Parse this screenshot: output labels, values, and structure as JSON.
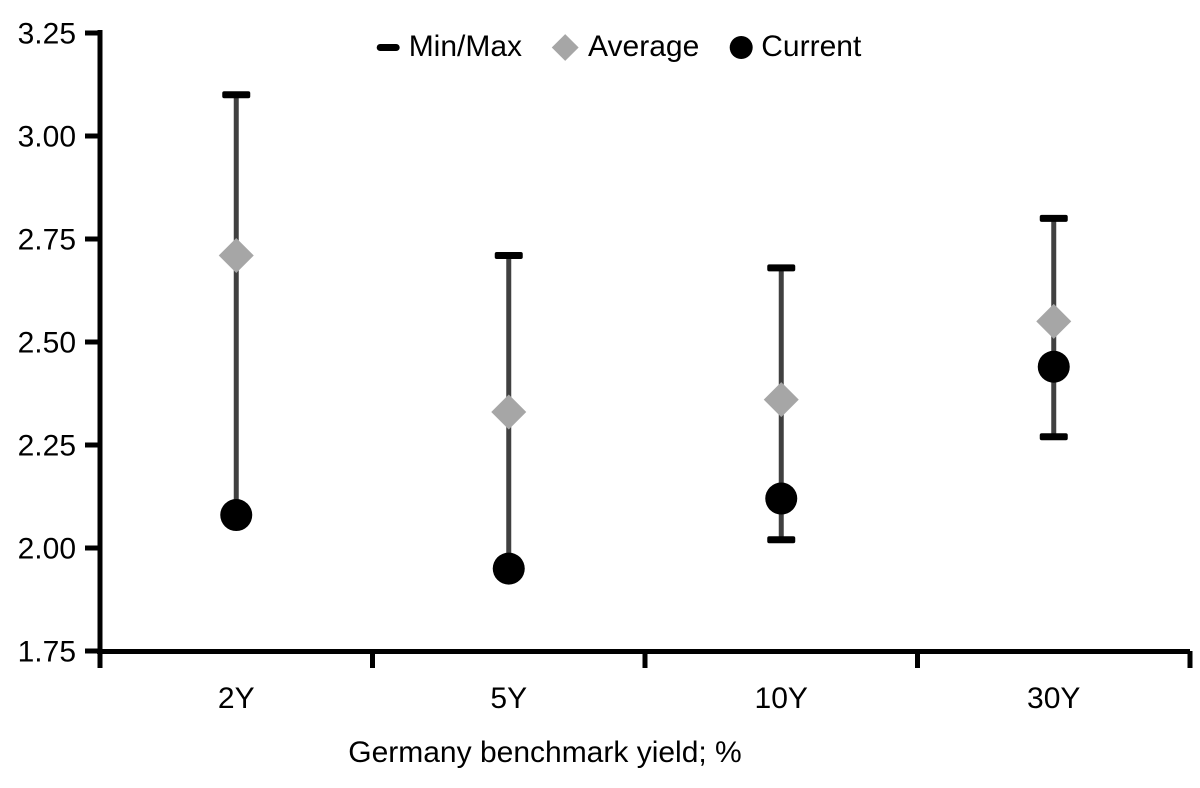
{
  "chart_data": {
    "type": "scatter",
    "subtype": "min-max-range-with-markers",
    "title": "",
    "xlabel": "Germany benchmark yield; %",
    "ylabel": "",
    "categories": [
      "2Y",
      "5Y",
      "10Y",
      "30Y"
    ],
    "series": [
      {
        "name": "Min/Max",
        "marker": "range",
        "min": [
          2.08,
          1.95,
          2.02,
          2.27
        ],
        "max": [
          3.1,
          2.71,
          2.68,
          2.8
        ]
      },
      {
        "name": "Average",
        "marker": "diamond",
        "values": [
          2.71,
          2.33,
          2.36,
          2.55
        ]
      },
      {
        "name": "Current",
        "marker": "circle",
        "values": [
          2.08,
          1.95,
          2.12,
          2.44
        ]
      }
    ],
    "ylim": [
      1.75,
      3.25
    ],
    "ytick_step": 0.25,
    "ytick_labels": [
      "3.25",
      "3.00",
      "2.75",
      "2.50",
      "2.25",
      "2.00",
      "1.75"
    ],
    "grid": false,
    "legend_position": "top-center",
    "colors": {
      "minmax_cap": "#000000",
      "whisker_line": "#404040",
      "average_fill": "#a6a6a6",
      "current_fill": "#000000",
      "axis": "#000000",
      "text": "#000000",
      "background": "#ffffff"
    }
  }
}
